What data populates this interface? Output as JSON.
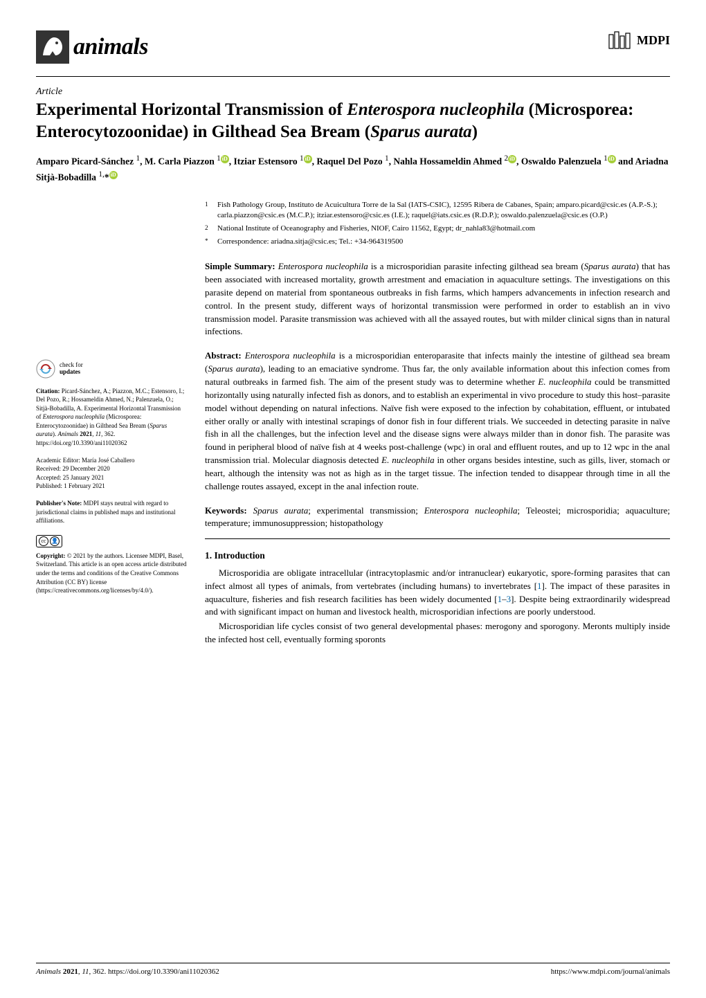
{
  "journal": {
    "name": "animals",
    "icon_bg": "#333333",
    "icon_fg": "#ffffff"
  },
  "publisher": {
    "name": "MDPI"
  },
  "article_type": "Article",
  "title_html": "Experimental Horizontal Transmission of <i>Enterospora nucleophila</i> (Microsporea: Enterocytozoonidae) in Gilthead Sea Bream (<i>Sparus aurata</i>)",
  "authors_html": "Amparo Picard-Sánchez <sup>1</sup>, M. Carla Piazzon <sup>1</sup><span class='orcid'>iD</span>, Itziar Estensoro <sup>1</sup><span class='orcid'>iD</span>, Raquel Del Pozo <sup>1</sup>, Nahla Hossameldin Ahmed <sup>2</sup><span class='orcid'>iD</span>, Oswaldo Palenzuela <sup>1</sup><span class='orcid'>iD</span> and Ariadna Sitjà-Bobadilla <sup>1,</sup>*<span class='orcid'>iD</span>",
  "affiliations": [
    {
      "num": "1",
      "text": "Fish Pathology Group, Instituto de Acuicultura Torre de la Sal (IATS-CSIC), 12595 Ribera de Cabanes, Spain; amparo.picard@csic.es (A.P.-S.); carla.piazzon@csic.es (M.C.P.); itziar.estensoro@csic.es (I.E.); raquel@iats.csic.es (R.D.P.); oswaldo.palenzuela@csic.es (O.P.)"
    },
    {
      "num": "2",
      "text": "National Institute of Oceanography and Fisheries, NIOF, Cairo 11562, Egypt; dr_nahla83@hotmail.com"
    },
    {
      "num": "*",
      "text": "Correspondence: ariadna.sitja@csic.es; Tel.: +34-964319500"
    }
  ],
  "simple_summary_label": "Simple Summary:",
  "simple_summary_html": "<i>Enterospora nucleophila</i> is a microsporidian parasite infecting gilthead sea bream (<i>Sparus aurata</i>) that has been associated with increased mortality, growth arrestment and emaciation in aquaculture settings. The investigations on this parasite depend on material from spontaneous outbreaks in fish farms, which hampers advancements in infection research and control. In the present study, different ways of horizontal transmission were performed in order to establish an in vivo transmission model. Parasite transmission was achieved with all the assayed routes, but with milder clinical signs than in natural infections.",
  "abstract_label": "Abstract:",
  "abstract_html": "<i>Enterospora nucleophila</i> is a microsporidian enteroparasite that infects mainly the intestine of gilthead sea bream (<i>Sparus aurata</i>), leading to an emaciative syndrome. Thus far, the only available information about this infection comes from natural outbreaks in farmed fish. The aim of the present study was to determine whether <i>E. nucleophila</i> could be transmitted horizontally using naturally infected fish as donors, and to establish an experimental in vivo procedure to study this host–parasite model without depending on natural infections. Naïve fish were exposed to the infection by cohabitation, effluent, or intubated either orally or anally with intestinal scrapings of donor fish in four different trials. We succeeded in detecting parasite in naïve fish in all the challenges, but the infection level and the disease signs were always milder than in donor fish. The parasite was found in peripheral blood of naïve fish at 4 weeks post-challenge (wpc) in oral and effluent routes, and up to 12 wpc in the anal transmission trial. Molecular diagnosis detected <i>E. nucleophila</i> in other organs besides intestine, such as gills, liver, stomach or heart, although the intensity was not as high as in the target tissue. The infection tended to disappear through time in all the challenge routes assayed, except in the anal infection route.",
  "keywords_label": "Keywords:",
  "keywords_html": "<i>Sparus aurata</i>; experimental transmission; <i>Enterospora nucleophila</i>; Teleostei; microsporidia; aquaculture; temperature; immunosuppression; histopathology",
  "section1_head": "1. Introduction",
  "section1_p1_html": "Microsporidia are obligate intracellular (intracytoplasmic and/or intranuclear) eukaryotic, spore-forming parasites that can infect almost all types of animals, from vertebrates (including humans) to invertebrates [<span class='ref-link'>1</span>]. The impact of these parasites in aquaculture, fisheries and fish research facilities has been widely documented [<span class='ref-link'>1</span>–<span class='ref-link'>3</span>]. Despite being extraordinarily widespread and with significant impact on human and livestock health, microsporidian infections are poorly understood.",
  "section1_p2_html": "Microsporidian life cycles consist of two general developmental phases: merogony and sporogony. Meronts multiply inside the infected host cell, eventually forming sporonts",
  "left": {
    "check_updates_l1": "check for",
    "check_updates_l2": "updates",
    "citation_label": "Citation:",
    "citation_text": "Picard-Sánchez, A.; Piazzon, M.C.; Estensoro, I.; Del Pozo, R.; Hossameldin Ahmed, N.; Palenzuela, O.; Sitjà-Bobadilla, A. Experimental Horizontal Transmission of <i>Enterospora nucleophila</i> (Microsporea: Enterocytozoonidae) in Gilthead Sea Bream (<i>Sparus aurata</i>). <i>Animals</i> <b>2021</b>, <i>11</i>, 362. https://doi.org/10.3390/ani11020362",
    "editor": "Academic Editor: María José Caballero",
    "received": "Received: 29 December 2020",
    "accepted": "Accepted: 25 January 2021",
    "published": "Published: 1 February 2021",
    "pubnote_label": "Publisher's Note:",
    "pubnote_text": "MDPI stays neutral with regard to jurisdictional claims in published maps and institutional affiliations.",
    "copyright_label": "Copyright:",
    "copyright_text": "© 2021 by the authors. Licensee MDPI, Basel, Switzerland. This article is an open access article distributed under the terms and conditions of the Creative Commons Attribution (CC BY) license (https://creativecommons.org/licenses/by/4.0/)."
  },
  "footer": {
    "left_html": "<i>Animals</i> <b>2021</b>, <i>11</i>, 362. https://doi.org/10.3390/ani11020362",
    "right": "https://www.mdpi.com/journal/animals"
  },
  "colors": {
    "text": "#000000",
    "link": "#0066aa",
    "orcid": "#a6ce39",
    "update_arrows": "#b02a2a"
  }
}
